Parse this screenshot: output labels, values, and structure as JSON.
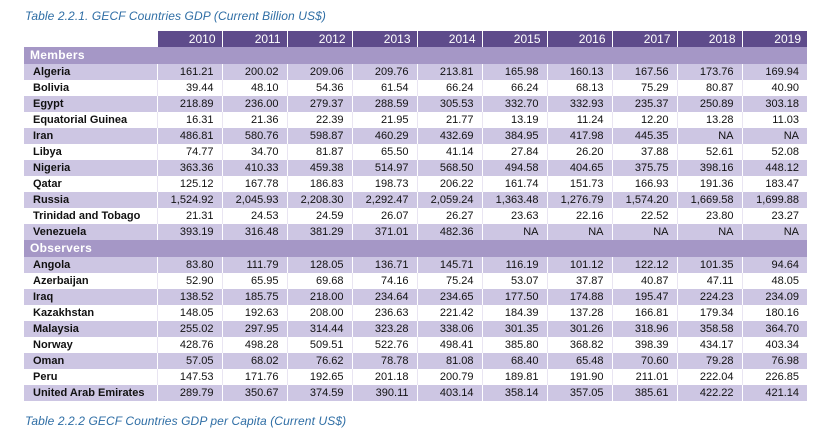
{
  "captions": {
    "table1": "Table 2.2.1. GECF Countries GDP (Current Billion US$)",
    "table2": "Table 2.2.2 GECF Countries GDP per Capita (Current US$)"
  },
  "years": [
    "2010",
    "2011",
    "2012",
    "2013",
    "2014",
    "2015",
    "2016",
    "2017",
    "2018",
    "2019"
  ],
  "groups": [
    {
      "label": "Members",
      "rows": [
        {
          "name": "Algeria",
          "values": [
            "161.21",
            "200.02",
            "209.06",
            "209.76",
            "213.81",
            "165.98",
            "160.13",
            "167.56",
            "173.76",
            "169.94"
          ]
        },
        {
          "name": "Bolivia",
          "values": [
            "39.44",
            "48.10",
            "54.36",
            "61.54",
            "66.24",
            "66.24",
            "68.13",
            "75.29",
            "80.87",
            "40.90"
          ]
        },
        {
          "name": "Egypt",
          "values": [
            "218.89",
            "236.00",
            "279.37",
            "288.59",
            "305.53",
            "332.70",
            "332.93",
            "235.37",
            "250.89",
            "303.18"
          ]
        },
        {
          "name": "Equatorial Guinea",
          "values": [
            "16.31",
            "21.36",
            "22.39",
            "21.95",
            "21.77",
            "13.19",
            "11.24",
            "12.20",
            "13.28",
            "11.03"
          ]
        },
        {
          "name": "Iran",
          "values": [
            "486.81",
            "580.76",
            "598.87",
            "460.29",
            "432.69",
            "384.95",
            "417.98",
            "445.35",
            "NA",
            "NA"
          ]
        },
        {
          "name": "Libya",
          "values": [
            "74.77",
            "34.70",
            "81.87",
            "65.50",
            "41.14",
            "27.84",
            "26.20",
            "37.88",
            "52.61",
            "52.08"
          ]
        },
        {
          "name": "Nigeria",
          "values": [
            "363.36",
            "410.33",
            "459.38",
            "514.97",
            "568.50",
            "494.58",
            "404.65",
            "375.75",
            "398.16",
            "448.12"
          ]
        },
        {
          "name": "Qatar",
          "values": [
            "125.12",
            "167.78",
            "186.83",
            "198.73",
            "206.22",
            "161.74",
            "151.73",
            "166.93",
            "191.36",
            "183.47"
          ]
        },
        {
          "name": "Russia",
          "values": [
            "1,524.92",
            "2,045.93",
            "2,208.30",
            "2,292.47",
            "2,059.24",
            "1,363.48",
            "1,276.79",
            "1,574.20",
            "1,669.58",
            "1,699.88"
          ]
        },
        {
          "name": "Trinidad and Tobago",
          "values": [
            "21.31",
            "24.53",
            "24.59",
            "26.07",
            "26.27",
            "23.63",
            "22.16",
            "22.52",
            "23.80",
            "23.27"
          ]
        },
        {
          "name": "Venezuela",
          "values": [
            "393.19",
            "316.48",
            "381.29",
            "371.01",
            "482.36",
            "NA",
            "NA",
            "NA",
            "NA",
            "NA"
          ]
        }
      ]
    },
    {
      "label": "Observers",
      "rows": [
        {
          "name": "Angola",
          "values": [
            "83.80",
            "111.79",
            "128.05",
            "136.71",
            "145.71",
            "116.19",
            "101.12",
            "122.12",
            "101.35",
            "94.64"
          ]
        },
        {
          "name": "Azerbaijan",
          "values": [
            "52.90",
            "65.95",
            "69.68",
            "74.16",
            "75.24",
            "53.07",
            "37.87",
            "40.87",
            "47.11",
            "48.05"
          ]
        },
        {
          "name": "Iraq",
          "values": [
            "138.52",
            "185.75",
            "218.00",
            "234.64",
            "234.65",
            "177.50",
            "174.88",
            "195.47",
            "224.23",
            "234.09"
          ]
        },
        {
          "name": "Kazakhstan",
          "values": [
            "148.05",
            "192.63",
            "208.00",
            "236.63",
            "221.42",
            "184.39",
            "137.28",
            "166.81",
            "179.34",
            "180.16"
          ]
        },
        {
          "name": "Malaysia",
          "values": [
            "255.02",
            "297.95",
            "314.44",
            "323.28",
            "338.06",
            "301.35",
            "301.26",
            "318.96",
            "358.58",
            "364.70"
          ]
        },
        {
          "name": "Norway",
          "values": [
            "428.76",
            "498.28",
            "509.51",
            "522.76",
            "498.41",
            "385.80",
            "368.82",
            "398.39",
            "434.17",
            "403.34"
          ]
        },
        {
          "name": "Oman",
          "values": [
            "57.05",
            "68.02",
            "76.62",
            "78.78",
            "81.08",
            "68.40",
            "65.48",
            "70.60",
            "79.28",
            "76.98"
          ]
        },
        {
          "name": "Peru",
          "values": [
            "147.53",
            "171.76",
            "192.65",
            "201.18",
            "200.79",
            "189.81",
            "191.90",
            "211.01",
            "222.04",
            "226.85"
          ]
        },
        {
          "name": "United Arab Emirates",
          "values": [
            "289.79",
            "350.67",
            "374.59",
            "390.11",
            "403.14",
            "358.14",
            "357.05",
            "385.61",
            "422.22",
            "421.14"
          ]
        }
      ]
    }
  ]
}
